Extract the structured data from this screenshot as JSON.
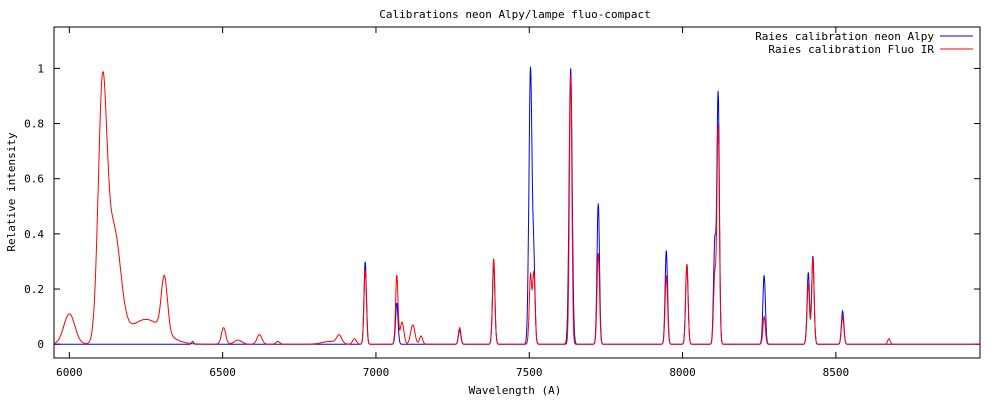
{
  "chart_data": {
    "type": "line",
    "title": "Calibrations neon Alpy/lampe fluo-compact",
    "xlabel": "Wavelength (A)",
    "ylabel": "Relative intensity",
    "xlim": [
      5950,
      8970
    ],
    "ylim": [
      -0.05,
      1.15
    ],
    "xticks": [
      6000,
      6500,
      7000,
      7500,
      8000,
      8500
    ],
    "xtick_labels": [
      "6000",
      "6500",
      "7000",
      "7500",
      "8000",
      "8500"
    ],
    "yticks": [
      0,
      0.2,
      0.4,
      0.6,
      0.8,
      1
    ],
    "ytick_labels": [
      "0",
      "0.2",
      "0.4",
      "0.6",
      "0.8",
      "1"
    ],
    "grid": false,
    "legend_position": "top-right",
    "colors": {
      "neon": "#0000ff",
      "fluo": "#ff0000"
    },
    "series": [
      {
        "name": "Raies calibration neon Alpy",
        "color": "#0000ff",
        "baseline": 0,
        "peaks": [
          [
            6402,
            0.01,
            3
          ],
          [
            6965,
            0.3,
            4
          ],
          [
            7068,
            0.15,
            4
          ],
          [
            7273,
            0.05,
            4
          ],
          [
            7384,
            0.29,
            4
          ],
          [
            7504,
            1.0,
            5
          ],
          [
            7515,
            0.27,
            4
          ],
          [
            7635,
            1.0,
            5
          ],
          [
            7725,
            0.51,
            4
          ],
          [
            7947,
            0.34,
            4
          ],
          [
            8014,
            0.29,
            4
          ],
          [
            8105,
            0.37,
            4
          ],
          [
            8116,
            0.91,
            4
          ],
          [
            8266,
            0.25,
            4
          ],
          [
            8410,
            0.26,
            4
          ],
          [
            8425,
            0.32,
            4
          ],
          [
            8522,
            0.12,
            4
          ]
        ]
      },
      {
        "name": "Raies calibration Fluo IR",
        "color": "#ff0000",
        "baseline": 0,
        "peaks": [
          [
            6000,
            0.11,
            18
          ],
          [
            6108,
            0.88,
            14
          ],
          [
            6145,
            0.4,
            22
          ],
          [
            6250,
            0.09,
            55
          ],
          [
            6310,
            0.2,
            10
          ],
          [
            6503,
            0.06,
            7
          ],
          [
            6550,
            0.015,
            12
          ],
          [
            6620,
            0.035,
            8
          ],
          [
            6680,
            0.01,
            6
          ],
          [
            6850,
            0.01,
            25
          ],
          [
            6880,
            0.03,
            8
          ],
          [
            6930,
            0.02,
            6
          ],
          [
            6965,
            0.27,
            4
          ],
          [
            7068,
            0.25,
            4
          ],
          [
            7085,
            0.08,
            6
          ],
          [
            7120,
            0.07,
            7
          ],
          [
            7147,
            0.03,
            5
          ],
          [
            7273,
            0.06,
            4
          ],
          [
            7384,
            0.31,
            4
          ],
          [
            7504,
            0.25,
            4
          ],
          [
            7515,
            0.26,
            4
          ],
          [
            7635,
            0.98,
            4
          ],
          [
            7725,
            0.33,
            4
          ],
          [
            7947,
            0.25,
            4
          ],
          [
            8014,
            0.29,
            4
          ],
          [
            8105,
            0.25,
            4
          ],
          [
            8116,
            0.79,
            4
          ],
          [
            8266,
            0.1,
            4
          ],
          [
            8410,
            0.22,
            4
          ],
          [
            8425,
            0.31,
            4
          ],
          [
            8522,
            0.1,
            4
          ],
          [
            8673,
            0.02,
            4
          ]
        ]
      }
    ]
  }
}
